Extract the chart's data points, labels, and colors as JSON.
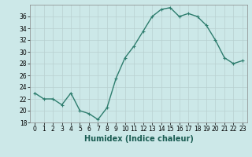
{
  "x": [
    0,
    1,
    2,
    3,
    4,
    5,
    6,
    7,
    8,
    9,
    10,
    11,
    12,
    13,
    14,
    15,
    16,
    17,
    18,
    19,
    20,
    21,
    22,
    23
  ],
  "y": [
    23,
    22,
    22,
    21,
    23,
    20,
    19.5,
    18.5,
    20.5,
    25.5,
    29,
    31,
    33.5,
    36,
    37.2,
    37.5,
    36,
    36.5,
    36,
    34.5,
    32,
    29,
    28,
    28.5
  ],
  "xlabel": "Humidex (Indice chaleur)",
  "ylim": [
    18,
    38
  ],
  "xlim": [
    -0.5,
    23.5
  ],
  "yticks": [
    18,
    20,
    22,
    24,
    26,
    28,
    30,
    32,
    34,
    36
  ],
  "xtick_labels": [
    "0",
    "1",
    "2",
    "3",
    "4",
    "5",
    "6",
    "7",
    "8",
    "9",
    "10",
    "11",
    "12",
    "13",
    "14",
    "15",
    "16",
    "17",
    "18",
    "19",
    "20",
    "21",
    "22",
    "23"
  ],
  "line_color": "#2e7d6e",
  "marker": "+",
  "bg_color": "#cce8e8",
  "grid_color": "#b8d0d0",
  "marker_size": 3,
  "linewidth": 1.0,
  "tick_fontsize": 5.5,
  "xlabel_fontsize": 7.0,
  "xlabel_color": "#1a5c52"
}
